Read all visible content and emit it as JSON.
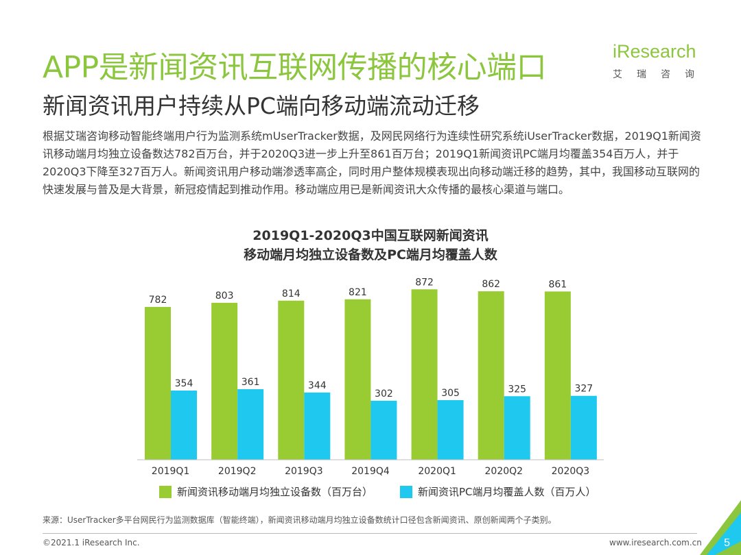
{
  "title": "APP是新闻资讯互联网传播的核心端口",
  "subtitle": "新闻资讯用户持续从PC端向移动端流动迁移",
  "logo": {
    "brand": "iResearch",
    "cn": "艾瑞咨询"
  },
  "description": "根据艾瑞咨询移动智能终端用户行为监测系统mUserTracker数据，及网民网络行为连续性研究系统iUserTracker数据，2019Q1新闻资讯移动端月均独立设备数达782百万台，并于2020Q3进一步上升至861百万台；2019Q1新闻资讯PC端月均覆盖354百万人，并于2020Q3下降至327百万人。新闻资讯用户移动端渗透率高企，同时用户整体规模表现出向移动端迁移的趋势，其中，我国移动互联网的快速发展与普及是大背景，新冠疫情起到推动作用。移动端应用已是新闻资讯大众传播的最核心渠道与端口。",
  "chart_title_line1": "2019Q1-2020Q3中国互联网新闻资讯",
  "chart_title_line2": "移动端月均独立设备数及PC端月均覆盖人数",
  "chart_data": {
    "type": "bar",
    "title": "2019Q1-2020Q3中国互联网新闻资讯 移动端月均独立设备数及PC端月均覆盖人数",
    "categories": [
      "2019Q1",
      "2019Q2",
      "2019Q3",
      "2019Q4",
      "2020Q1",
      "2020Q2",
      "2020Q3"
    ],
    "series": [
      {
        "name": "新闻资讯移动端月均独立设备数（百万台）",
        "values": [
          782,
          803,
          814,
          821,
          872,
          862,
          861
        ],
        "color": "#99cc33"
      },
      {
        "name": "新闻资讯PC端月均覆盖人数（百万人）",
        "values": [
          354,
          361,
          344,
          302,
          305,
          325,
          327
        ],
        "color": "#1ec8ef"
      }
    ],
    "ylim": [
      0,
      950
    ],
    "grid": false,
    "legend_position": "bottom"
  },
  "source": "来源：UserTracker多平台网民行为监测数据库（智能终端），新闻资讯移动端月均独立设备数统计口径包含新闻资讯、原创新闻两个子类别。",
  "copyright": "©2021.1 iResearch Inc.",
  "website": "www.iresearch.com.cn",
  "page_number": "5",
  "colors": {
    "brand_green": "#8cc63f",
    "cyan": "#1ec8ef"
  }
}
